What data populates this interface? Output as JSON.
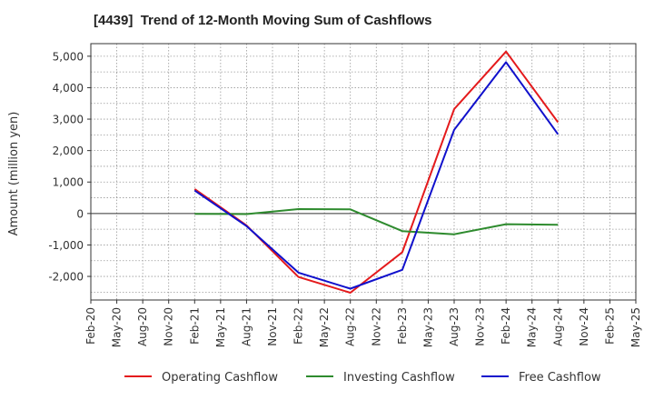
{
  "chart_data": {
    "type": "line",
    "title": "[4439]  Trend of 12-Month Moving Sum of Cashflows",
    "ylabel": "Amount (million yen)",
    "xlabel": "",
    "ylim": [
      -2750,
      5400
    ],
    "yticks": [
      -2000,
      -1000,
      0,
      1000,
      2000,
      3000,
      4000,
      5000
    ],
    "ytick_labels": [
      "-2,000",
      "-1,000",
      "0",
      "1,000",
      "2,000",
      "3,000",
      "4,000",
      "5,000"
    ],
    "x": [
      "Feb-20",
      "May-20",
      "Aug-20",
      "Nov-20",
      "Feb-21",
      "May-21",
      "Aug-21",
      "Nov-21",
      "Feb-22",
      "May-22",
      "Aug-22",
      "Nov-22",
      "Feb-23",
      "May-23",
      "Aug-23",
      "Nov-23",
      "Feb-24",
      "May-24",
      "Aug-24",
      "Nov-24",
      "Feb-25",
      "May-25"
    ],
    "grid": true,
    "legend_position": "bottom",
    "series": [
      {
        "name": "Operating Cashflow",
        "color": "#e41a1c",
        "values": [
          null,
          null,
          null,
          null,
          780,
          null,
          -380,
          null,
          -2020,
          null,
          -2520,
          null,
          -1230,
          null,
          3320,
          null,
          5150,
          null,
          2900,
          null,
          null,
          null
        ]
      },
      {
        "name": "Investing Cashflow",
        "color": "#2e8b2e",
        "values": [
          null,
          null,
          null,
          null,
          -10,
          null,
          -20,
          null,
          140,
          null,
          130,
          null,
          -560,
          null,
          -660,
          null,
          -340,
          null,
          -360,
          null,
          null,
          null
        ]
      },
      {
        "name": "Free Cashflow",
        "color": "#1010cc",
        "values": [
          null,
          null,
          null,
          null,
          730,
          null,
          -400,
          null,
          -1880,
          null,
          -2390,
          null,
          -1790,
          null,
          2660,
          null,
          4810,
          null,
          2520,
          null,
          null,
          null
        ]
      }
    ]
  }
}
